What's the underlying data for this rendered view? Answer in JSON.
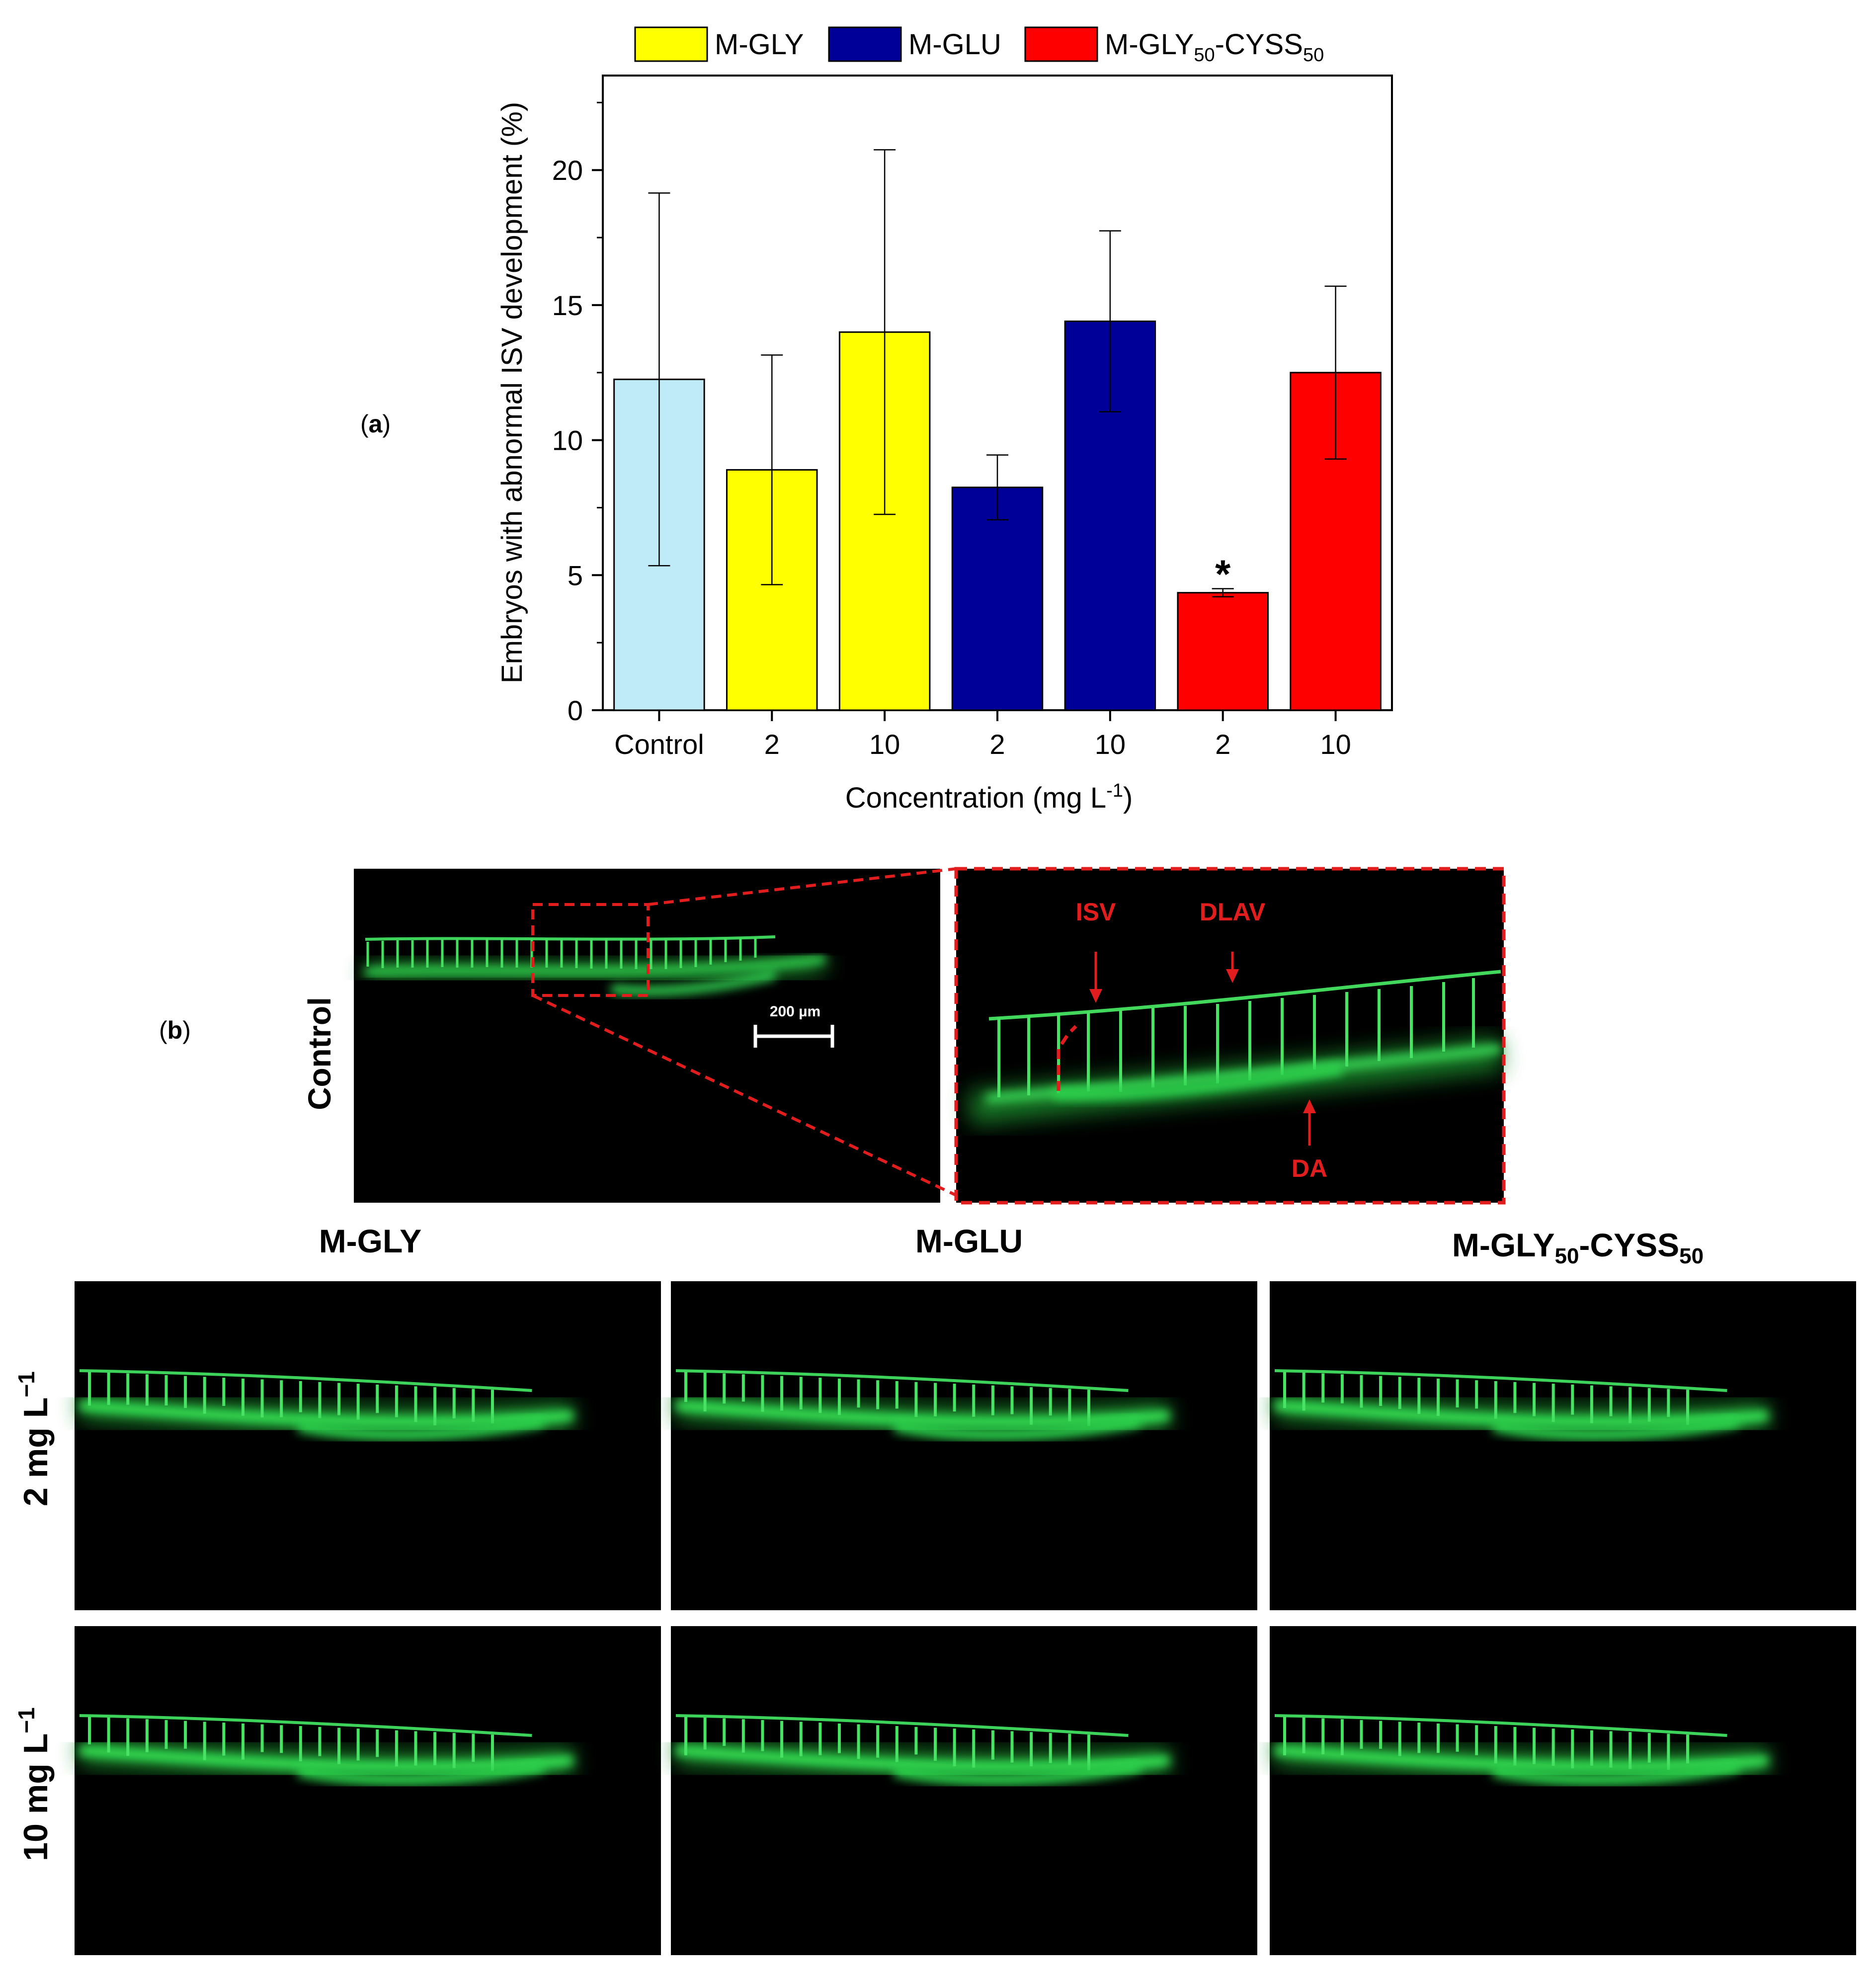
{
  "panel_labels": {
    "a": "a",
    "b": "b"
  },
  "chart_data": {
    "type": "bar",
    "title": "",
    "xlabel": "Concentration (mg L",
    "xlabel_superscript": "-1",
    "xlabel_close": ")",
    "ylabel": "Embryos with abnormal ISV development (%)",
    "ylim": [
      0,
      23.5
    ],
    "yticks": [
      0,
      5,
      10,
      15,
      20
    ],
    "grid": false,
    "legend_position": "top",
    "legend": [
      {
        "name": "M-GLY",
        "color": "#ffff00"
      },
      {
        "name": "M-GLU",
        "color": "#000099"
      },
      {
        "name": "M-GLY",
        "sub1": "50",
        "mid": "-CYSS",
        "sub2": "50",
        "color": "#ff0000"
      }
    ],
    "categories": [
      "Control",
      "2",
      "10",
      "2",
      "10",
      "2",
      "10"
    ],
    "values": [
      12.25,
      8.9,
      14.0,
      8.25,
      14.4,
      4.35,
      12.5
    ],
    "errors": [
      6.9,
      4.25,
      6.75,
      1.2,
      3.35,
      0.15,
      3.2
    ],
    "colors": [
      "#bfeaf8",
      "#ffff00",
      "#ffff00",
      "#000099",
      "#000099",
      "#ff0000",
      "#ff0000"
    ],
    "annotations": [
      {
        "index": 5,
        "text": "*"
      }
    ]
  },
  "micrographs": {
    "control_label": "Control",
    "scale_bar": "200 µm",
    "zoom_labels": {
      "isv": "ISV",
      "dlav": "DLAV",
      "da": "DA"
    },
    "columns": [
      {
        "name": "M-GLY"
      },
      {
        "name": "M-GLU"
      },
      {
        "name": "M-GLY",
        "sub1": "50",
        "mid": "-CYSS",
        "sub2": "50"
      }
    ],
    "rows": [
      {
        "value": "2",
        "unit": "mg L",
        "sup": "−1"
      },
      {
        "value": "10",
        "unit": "mg L",
        "sup": "−1"
      }
    ]
  }
}
